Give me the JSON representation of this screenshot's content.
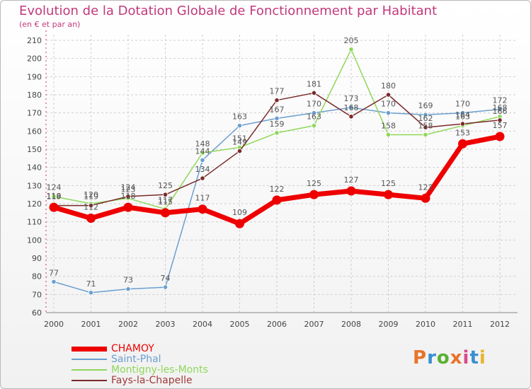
{
  "header": {
    "title": "Evolution de la Dotation Globale de Fonctionnement par Habitant",
    "subtitle": "(en € et par an)"
  },
  "logo": {
    "text": "Proxiti",
    "colors": [
      "#e8732b",
      "#3a8fd0",
      "#58b031",
      "#e8732b",
      "#d94a8c",
      "#3a8fd0",
      "#e8b62b"
    ]
  },
  "colors": {
    "grid": "#cfcfcf",
    "axis": "#888888",
    "tick_text": "#444444",
    "value_text": "#555555"
  },
  "chart_data": {
    "type": "line",
    "title": "Evolution de la Dotation Globale de Fonctionnement par Habitant",
    "subtitle": "(en € et par an)",
    "xlabel": "",
    "ylabel": "",
    "x": [
      "2000",
      "2001",
      "2002",
      "2003",
      "2004",
      "2005",
      "2006",
      "2007",
      "2008",
      "2009",
      "2010",
      "2011",
      "2012"
    ],
    "ylim": [
      60,
      210
    ],
    "yticks": [
      60,
      70,
      80,
      90,
      100,
      110,
      120,
      130,
      140,
      150,
      160,
      170,
      180,
      190,
      200,
      210
    ],
    "grid": true,
    "legend_position": "bottom-left",
    "series": [
      {
        "name": "CHAMOY",
        "color": "#ee0000",
        "emphasis": true,
        "values": [
          118,
          112,
          118,
          115,
          117,
          109,
          122,
          125,
          127,
          125,
          123,
          153,
          157
        ],
        "labels": [
          "118",
          "112",
          "118",
          "115",
          "117",
          "109",
          "122",
          "125",
          "127",
          "125",
          "123",
          "153",
          "157"
        ]
      },
      {
        "name": "Saint-Phal",
        "color": "#6a9fcf",
        "values": [
          77,
          71,
          73,
          74,
          144,
          163,
          167,
          170,
          173,
          170,
          169,
          170,
          172
        ],
        "labels": [
          "77",
          "71",
          "73",
          "74",
          "144",
          "163",
          "167",
          "170",
          "173",
          "170",
          "169",
          "170",
          "172"
        ]
      },
      {
        "name": "Montigny-les-Monts",
        "color": "#8fd85a",
        "values": [
          124,
          120,
          123,
          117,
          148,
          151,
          159,
          163,
          205,
          158,
          158,
          163,
          168
        ],
        "labels": [
          "124",
          "120",
          "123",
          "117",
          "148",
          "151",
          "159",
          "163",
          "205",
          "158",
          "158",
          "163",
          "168"
        ]
      },
      {
        "name": "Fays-la-Chapelle",
        "color": "#7a2a2a",
        "values": [
          119,
          119,
          124,
          125,
          134,
          149,
          177,
          181,
          168,
          180,
          162,
          164,
          166
        ],
        "labels": [
          "119",
          "119",
          "124",
          "125",
          "134",
          "149",
          "177",
          "181",
          "168",
          "180",
          "162",
          "164",
          "166"
        ]
      }
    ]
  }
}
